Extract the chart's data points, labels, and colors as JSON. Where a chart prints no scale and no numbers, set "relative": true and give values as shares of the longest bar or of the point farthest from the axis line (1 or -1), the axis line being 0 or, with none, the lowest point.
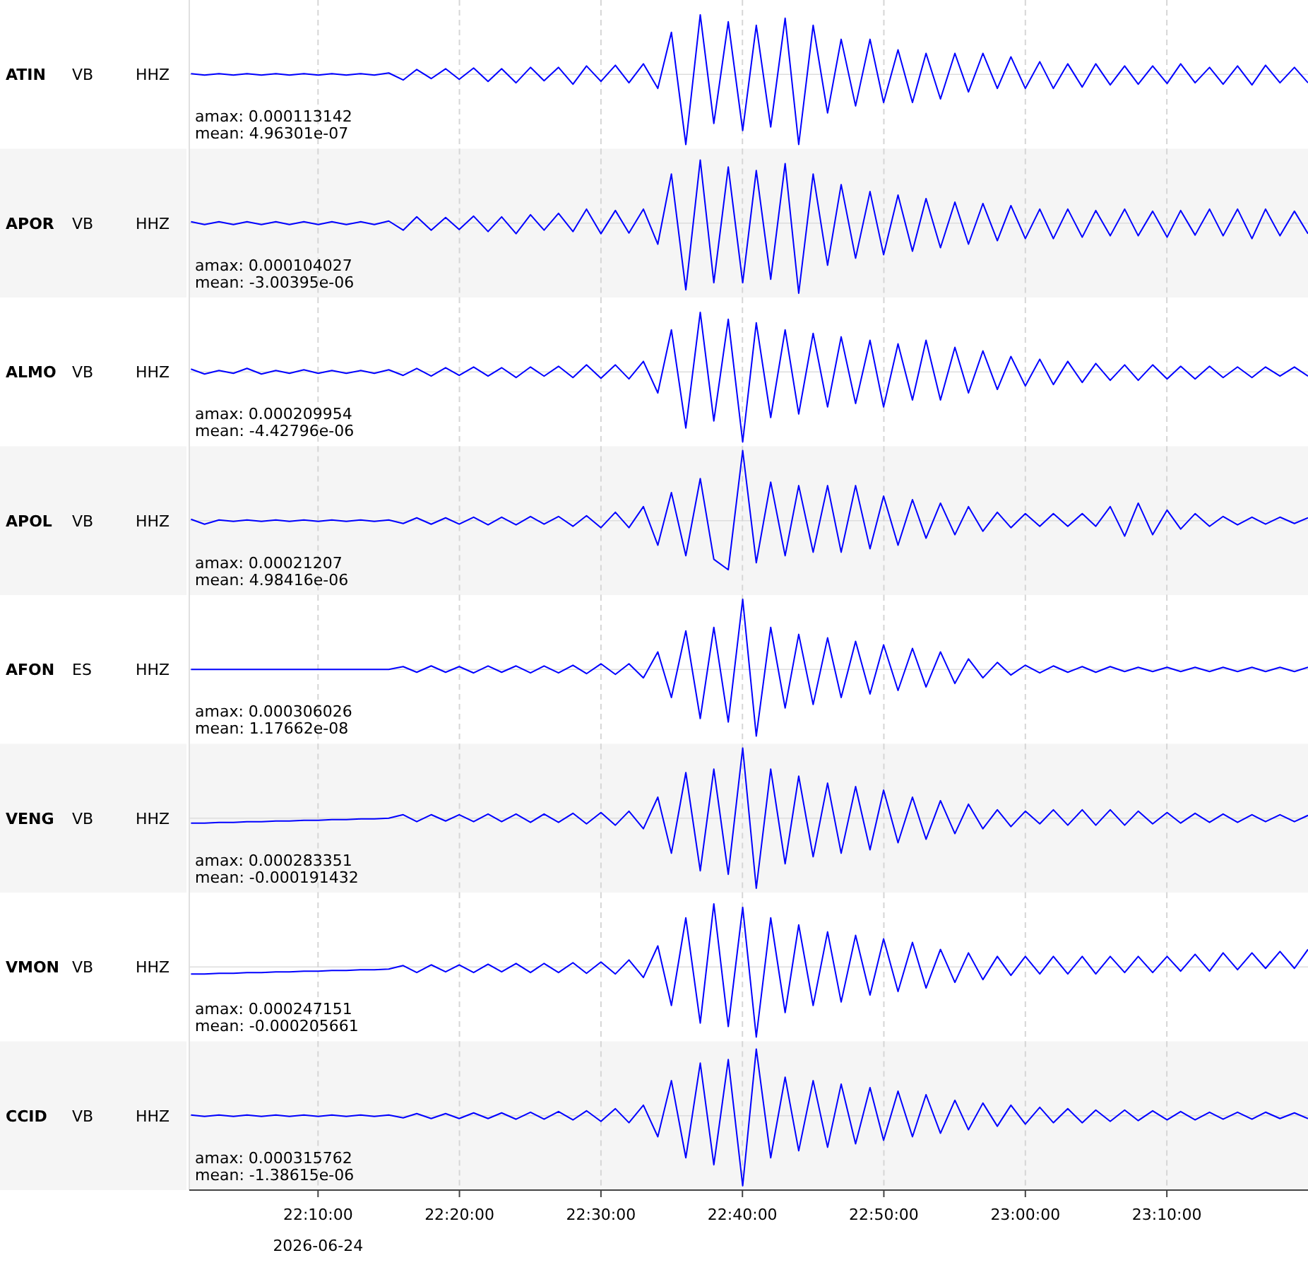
{
  "chart_data": [
    {
      "type": "line",
      "annotations": [
        "ATIN",
        "VB",
        "HHZ",
        "amax: 0.000113142",
        "mean: 4.96301e-07"
      ],
      "relative": true,
      "grid": "x",
      "tick_labels": false,
      "xlim": [
        22.015,
        23.333
      ],
      "xticks": [
        {
          "value": 22.1667,
          "label": null
        },
        {
          "value": 22.3333,
          "label": null
        },
        {
          "value": 22.5,
          "label": null
        },
        {
          "value": 22.6667,
          "label": null
        },
        {
          "value": 22.8333,
          "label": null
        },
        {
          "value": 23.0,
          "label": null
        },
        {
          "value": 23.1667,
          "label": null
        }
      ],
      "x": [
        22.017,
        22.033,
        22.05,
        22.067,
        22.083,
        22.1,
        22.117,
        22.133,
        22.15,
        22.167,
        22.183,
        22.2,
        22.217,
        22.233,
        22.25,
        22.267,
        22.283,
        22.3,
        22.317,
        22.333,
        22.35,
        22.367,
        22.383,
        22.4,
        22.417,
        22.433,
        22.45,
        22.467,
        22.483,
        22.5,
        22.517,
        22.533,
        22.55,
        22.567,
        22.583,
        22.6,
        22.617,
        22.633,
        22.65,
        22.667,
        22.683,
        22.7,
        22.717,
        22.733,
        22.75,
        22.767,
        22.783,
        22.8,
        22.817,
        22.833,
        22.85,
        22.867,
        22.883,
        22.9,
        22.917,
        22.933,
        22.95,
        22.967,
        22.983,
        23.0,
        23.017,
        23.033,
        23.05,
        23.067,
        23.083,
        23.1,
        23.117,
        23.133,
        23.15,
        23.167,
        23.183,
        23.2,
        23.217,
        23.233,
        23.25,
        23.267,
        23.283,
        23.3,
        23.317,
        23.333
      ],
      "series": [
        {
          "color": "#0000ff",
          "values": [
            0.01,
            -0.01,
            0.01,
            -0.01,
            0.01,
            -0.01,
            0.01,
            -0.01,
            0.01,
            -0.01,
            0.01,
            -0.01,
            0.01,
            -0.01,
            0.02,
            -0.08,
            0.07,
            -0.06,
            0.08,
            -0.07,
            0.09,
            -0.1,
            0.08,
            -0.12,
            0.1,
            -0.09,
            0.1,
            -0.14,
            0.12,
            -0.1,
            0.13,
            -0.12,
            0.15,
            -0.2,
            0.6,
            -1,
            0.85,
            -0.7,
            0.75,
            -0.8,
            0.7,
            -0.75,
            0.8,
            -1,
            0.7,
            -0.55,
            0.5,
            -0.45,
            0.5,
            -0.4,
            0.35,
            -0.4,
            0.3,
            -0.35,
            0.3,
            -0.25,
            0.3,
            -0.2,
            0.25,
            -0.2,
            0.18,
            -0.2,
            0.15,
            -0.18,
            0.15,
            -0.15,
            0.12,
            -0.14,
            0.12,
            -0.13,
            0.15,
            -0.12,
            0.1,
            -0.14,
            0.12,
            -0.15,
            0.13,
            -0.12,
            0.1,
            -0.12
          ]
        }
      ]
    },
    {
      "type": "line",
      "annotations": [
        "APOR",
        "VB",
        "HHZ",
        "amax: 0.000104027",
        "mean: -3.00395e-06"
      ],
      "relative": true,
      "grid": "x",
      "tick_labels": false,
      "xlim": [
        22.015,
        23.333
      ],
      "xticks": [
        {
          "value": 22.1667,
          "label": null
        },
        {
          "value": 22.3333,
          "label": null
        },
        {
          "value": 22.5,
          "label": null
        },
        {
          "value": 22.6667,
          "label": null
        },
        {
          "value": 22.8333,
          "label": null
        },
        {
          "value": 23.0,
          "label": null
        },
        {
          "value": 23.1667,
          "label": null
        }
      ],
      "x": [
        22.017,
        22.033,
        22.05,
        22.067,
        22.083,
        22.1,
        22.117,
        22.133,
        22.15,
        22.167,
        22.183,
        22.2,
        22.217,
        22.233,
        22.25,
        22.267,
        22.283,
        22.3,
        22.317,
        22.333,
        22.35,
        22.367,
        22.383,
        22.4,
        22.417,
        22.433,
        22.45,
        22.467,
        22.483,
        22.5,
        22.517,
        22.533,
        22.55,
        22.567,
        22.583,
        22.6,
        22.617,
        22.633,
        22.65,
        22.667,
        22.683,
        22.7,
        22.717,
        22.733,
        22.75,
        22.767,
        22.783,
        22.8,
        22.817,
        22.833,
        22.85,
        22.867,
        22.883,
        22.9,
        22.917,
        22.933,
        22.95,
        22.967,
        22.983,
        23.0,
        23.017,
        23.033,
        23.05,
        23.067,
        23.083,
        23.1,
        23.117,
        23.133,
        23.15,
        23.167,
        23.183,
        23.2,
        23.217,
        23.233,
        23.25,
        23.267,
        23.283,
        23.3,
        23.317,
        23.333
      ],
      "series": [
        {
          "color": "#0000ff",
          "values": [
            0.02,
            -0.02,
            0.02,
            -0.02,
            0.02,
            -0.02,
            0.02,
            -0.02,
            0.02,
            -0.02,
            0.02,
            -0.02,
            0.02,
            -0.02,
            0.03,
            -0.1,
            0.09,
            -0.1,
            0.08,
            -0.09,
            0.1,
            -0.12,
            0.09,
            -0.15,
            0.12,
            -0.1,
            0.14,
            -0.12,
            0.2,
            -0.15,
            0.18,
            -0.14,
            0.2,
            -0.3,
            0.7,
            -0.95,
            0.9,
            -0.85,
            0.8,
            -0.85,
            0.75,
            -0.8,
            0.85,
            -1,
            0.7,
            -0.6,
            0.55,
            -0.5,
            0.45,
            -0.45,
            0.4,
            -0.4,
            0.35,
            -0.35,
            0.3,
            -0.3,
            0.28,
            -0.25,
            0.25,
            -0.22,
            0.2,
            -0.22,
            0.2,
            -0.2,
            0.18,
            -0.18,
            0.2,
            -0.18,
            0.17,
            -0.2,
            0.18,
            -0.17,
            0.2,
            -0.18,
            0.2,
            -0.22,
            0.2,
            -0.18,
            0.17,
            -0.15
          ]
        }
      ]
    },
    {
      "type": "line",
      "annotations": [
        "ALMO",
        "VB",
        "HHZ",
        "amax: 0.000209954",
        "mean: -4.42796e-06"
      ],
      "relative": true,
      "grid": "x",
      "tick_labels": false,
      "xlim": [
        22.015,
        23.333
      ],
      "xticks": [
        {
          "value": 22.1667,
          "label": null
        },
        {
          "value": 22.3333,
          "label": null
        },
        {
          "value": 22.5,
          "label": null
        },
        {
          "value": 22.6667,
          "label": null
        },
        {
          "value": 22.8333,
          "label": null
        },
        {
          "value": 23.0,
          "label": null
        },
        {
          "value": 23.1667,
          "label": null
        }
      ],
      "x": [
        22.017,
        22.033,
        22.05,
        22.067,
        22.083,
        22.1,
        22.117,
        22.133,
        22.15,
        22.167,
        22.183,
        22.2,
        22.217,
        22.233,
        22.25,
        22.267,
        22.283,
        22.3,
        22.317,
        22.333,
        22.35,
        22.367,
        22.383,
        22.4,
        22.417,
        22.433,
        22.45,
        22.467,
        22.483,
        22.5,
        22.517,
        22.533,
        22.55,
        22.567,
        22.583,
        22.6,
        22.617,
        22.633,
        22.65,
        22.667,
        22.683,
        22.7,
        22.717,
        22.733,
        22.75,
        22.767,
        22.783,
        22.8,
        22.817,
        22.833,
        22.85,
        22.867,
        22.883,
        22.9,
        22.917,
        22.933,
        22.95,
        22.967,
        22.983,
        23.0,
        23.017,
        23.033,
        23.05,
        23.067,
        23.083,
        23.1,
        23.117,
        23.133,
        23.15,
        23.167,
        23.183,
        23.2,
        23.217,
        23.233,
        23.25,
        23.267,
        23.283,
        23.3,
        23.317,
        23.333
      ],
      "series": [
        {
          "color": "#0000ff",
          "values": [
            0.04,
            -0.03,
            0.02,
            -0.02,
            0.05,
            -0.03,
            0.02,
            -0.02,
            0.03,
            -0.02,
            0.02,
            -0.02,
            0.02,
            -0.02,
            0.03,
            -0.05,
            0.05,
            -0.06,
            0.06,
            -0.05,
            0.07,
            -0.06,
            0.06,
            -0.08,
            0.07,
            -0.06,
            0.08,
            -0.08,
            0.1,
            -0.09,
            0.1,
            -0.1,
            0.15,
            -0.3,
            0.6,
            -0.8,
            0.85,
            -0.7,
            0.75,
            -1,
            0.7,
            -0.65,
            0.6,
            -0.6,
            0.55,
            -0.5,
            0.5,
            -0.45,
            0.45,
            -0.5,
            0.4,
            -0.4,
            0.45,
            -0.4,
            0.35,
            -0.3,
            0.3,
            -0.25,
            0.22,
            -0.2,
            0.18,
            -0.18,
            0.15,
            -0.15,
            0.12,
            -0.12,
            0.1,
            -0.12,
            0.1,
            -0.1,
            0.08,
            -0.1,
            0.08,
            -0.08,
            0.07,
            -0.08,
            0.07,
            -0.06,
            0.07,
            -0.06
          ]
        }
      ]
    },
    {
      "type": "line",
      "annotations": [
        "APOL",
        "VB",
        "HHZ",
        "amax: 0.00021207",
        "mean: 4.98416e-06"
      ],
      "relative": true,
      "grid": "x",
      "tick_labels": false,
      "xlim": [
        22.015,
        23.333
      ],
      "xticks": [
        {
          "value": 22.1667,
          "label": null
        },
        {
          "value": 22.3333,
          "label": null
        },
        {
          "value": 22.5,
          "label": null
        },
        {
          "value": 22.6667,
          "label": null
        },
        {
          "value": 22.8333,
          "label": null
        },
        {
          "value": 23.0,
          "label": null
        },
        {
          "value": 23.1667,
          "label": null
        }
      ],
      "x": [
        22.017,
        22.033,
        22.05,
        22.067,
        22.083,
        22.1,
        22.117,
        22.133,
        22.15,
        22.167,
        22.183,
        22.2,
        22.217,
        22.233,
        22.25,
        22.267,
        22.283,
        22.3,
        22.317,
        22.333,
        22.35,
        22.367,
        22.383,
        22.4,
        22.417,
        22.433,
        22.45,
        22.467,
        22.483,
        22.5,
        22.517,
        22.533,
        22.55,
        22.567,
        22.583,
        22.6,
        22.617,
        22.633,
        22.65,
        22.667,
        22.683,
        22.7,
        22.717,
        22.733,
        22.75,
        22.767,
        22.783,
        22.8,
        22.817,
        22.833,
        22.85,
        22.867,
        22.883,
        22.9,
        22.917,
        22.933,
        22.95,
        22.967,
        22.983,
        23.0,
        23.017,
        23.033,
        23.05,
        23.067,
        23.083,
        23.1,
        23.117,
        23.133,
        23.15,
        23.167,
        23.183,
        23.2,
        23.217,
        23.233,
        23.25,
        23.267,
        23.283,
        23.3,
        23.317,
        23.333
      ],
      "series": [
        {
          "color": "#0000ff",
          "values": [
            0.02,
            -0.05,
            0.01,
            -0.01,
            0.01,
            -0.01,
            0.01,
            -0.01,
            0.01,
            -0.01,
            0.01,
            -0.01,
            0.01,
            -0.01,
            0.01,
            -0.04,
            0.04,
            -0.05,
            0.04,
            -0.05,
            0.05,
            -0.06,
            0.05,
            -0.06,
            0.06,
            -0.05,
            0.06,
            -0.08,
            0.07,
            -0.1,
            0.12,
            -0.1,
            0.2,
            -0.35,
            0.4,
            -0.5,
            0.6,
            -0.55,
            -0.7,
            1,
            -0.6,
            0.55,
            -0.5,
            0.5,
            -0.45,
            0.5,
            -0.45,
            0.5,
            -0.4,
            0.35,
            -0.35,
            0.3,
            -0.25,
            0.25,
            -0.2,
            0.2,
            -0.15,
            0.12,
            -0.1,
            0.1,
            -0.08,
            0.1,
            -0.08,
            0.1,
            -0.08,
            0.2,
            -0.22,
            0.25,
            -0.2,
            0.15,
            -0.12,
            0.1,
            -0.08,
            0.06,
            -0.06,
            0.05,
            -0.05,
            0.05,
            -0.04,
            0.04
          ]
        }
      ]
    },
    {
      "type": "line",
      "annotations": [
        "AFON",
        "ES",
        "HHZ",
        "amax: 0.000306026",
        "mean: 1.17662e-08"
      ],
      "relative": true,
      "grid": "x",
      "tick_labels": false,
      "xlim": [
        22.015,
        23.333
      ],
      "xticks": [
        {
          "value": 22.1667,
          "label": null
        },
        {
          "value": 22.3333,
          "label": null
        },
        {
          "value": 22.5,
          "label": null
        },
        {
          "value": 22.6667,
          "label": null
        },
        {
          "value": 22.8333,
          "label": null
        },
        {
          "value": 23.0,
          "label": null
        },
        {
          "value": 23.1667,
          "label": null
        }
      ],
      "x": [
        22.017,
        22.033,
        22.05,
        22.067,
        22.083,
        22.1,
        22.117,
        22.133,
        22.15,
        22.167,
        22.183,
        22.2,
        22.217,
        22.233,
        22.25,
        22.267,
        22.283,
        22.3,
        22.317,
        22.333,
        22.35,
        22.367,
        22.383,
        22.4,
        22.417,
        22.433,
        22.45,
        22.467,
        22.483,
        22.5,
        22.517,
        22.533,
        22.55,
        22.567,
        22.583,
        22.6,
        22.617,
        22.633,
        22.65,
        22.667,
        22.683,
        22.7,
        22.717,
        22.733,
        22.75,
        22.767,
        22.783,
        22.8,
        22.817,
        22.833,
        22.85,
        22.867,
        22.883,
        22.9,
        22.917,
        22.933,
        22.95,
        22.967,
        22.983,
        23.0,
        23.017,
        23.033,
        23.05,
        23.067,
        23.083,
        23.1,
        23.117,
        23.133,
        23.15,
        23.167,
        23.183,
        23.2,
        23.217,
        23.233,
        23.25,
        23.267,
        23.283,
        23.3,
        23.317,
        23.333
      ],
      "series": [
        {
          "color": "#0000ff",
          "values": [
            0,
            0,
            0,
            0,
            0,
            0,
            0,
            0,
            0,
            0,
            0,
            0,
            0,
            0,
            0,
            0.04,
            -0.04,
            0.05,
            -0.04,
            0.04,
            -0.05,
            0.05,
            -0.04,
            0.05,
            -0.05,
            0.05,
            -0.05,
            0.06,
            -0.06,
            0.08,
            -0.07,
            0.08,
            -0.12,
            0.25,
            -0.4,
            0.55,
            -0.7,
            0.6,
            -0.75,
            1,
            -0.95,
            0.6,
            -0.55,
            0.5,
            -0.5,
            0.45,
            -0.4,
            0.4,
            -0.35,
            0.35,
            -0.3,
            0.3,
            -0.25,
            0.25,
            -0.2,
            0.15,
            -0.12,
            0.1,
            -0.08,
            0.06,
            -0.05,
            0.05,
            -0.04,
            0.04,
            -0.04,
            0.04,
            -0.03,
            0.03,
            -0.03,
            0.03,
            -0.03,
            0.03,
            -0.03,
            0.03,
            -0.03,
            0.03,
            -0.03,
            0.03,
            -0.03,
            0.03
          ]
        }
      ]
    },
    {
      "type": "line",
      "annotations": [
        "VENG",
        "VB",
        "HHZ",
        "amax: 0.000283351",
        "mean: -0.000191432"
      ],
      "relative": true,
      "grid": "x",
      "tick_labels": false,
      "xlim": [
        22.015,
        23.333
      ],
      "xticks": [
        {
          "value": 22.1667,
          "label": null
        },
        {
          "value": 22.3333,
          "label": null
        },
        {
          "value": 22.5,
          "label": null
        },
        {
          "value": 22.6667,
          "label": null
        },
        {
          "value": 22.8333,
          "label": null
        },
        {
          "value": 23.0,
          "label": null
        },
        {
          "value": 23.1667,
          "label": null
        }
      ],
      "x": [
        22.017,
        22.033,
        22.05,
        22.067,
        22.083,
        22.1,
        22.117,
        22.133,
        22.15,
        22.167,
        22.183,
        22.2,
        22.217,
        22.233,
        22.25,
        22.267,
        22.283,
        22.3,
        22.317,
        22.333,
        22.35,
        22.367,
        22.383,
        22.4,
        22.417,
        22.433,
        22.45,
        22.467,
        22.483,
        22.5,
        22.517,
        22.533,
        22.55,
        22.567,
        22.583,
        22.6,
        22.617,
        22.633,
        22.65,
        22.667,
        22.683,
        22.7,
        22.717,
        22.733,
        22.75,
        22.767,
        22.783,
        22.8,
        22.817,
        22.833,
        22.85,
        22.867,
        22.883,
        22.9,
        22.917,
        22.933,
        22.95,
        22.967,
        22.983,
        23.0,
        23.017,
        23.033,
        23.05,
        23.067,
        23.083,
        23.1,
        23.117,
        23.133,
        23.15,
        23.167,
        23.183,
        23.2,
        23.217,
        23.233,
        23.25,
        23.267,
        23.283,
        23.3,
        23.317,
        23.333
      ],
      "series": [
        {
          "color": "#0000ff",
          "values": [
            -0.07,
            -0.07,
            -0.06,
            -0.06,
            -0.05,
            -0.05,
            -0.04,
            -0.04,
            -0.03,
            -0.03,
            -0.02,
            -0.02,
            -0.01,
            -0.01,
            0,
            0.05,
            -0.05,
            0.05,
            -0.04,
            0.05,
            -0.05,
            0.06,
            -0.05,
            0.06,
            -0.06,
            0.06,
            -0.06,
            0.07,
            -0.08,
            0.08,
            -0.1,
            0.1,
            -0.15,
            0.3,
            -0.5,
            0.65,
            -0.75,
            0.7,
            -0.8,
            1,
            -1,
            0.7,
            -0.65,
            0.6,
            -0.55,
            0.5,
            -0.5,
            0.45,
            -0.45,
            0.4,
            -0.35,
            0.3,
            -0.3,
            0.25,
            -0.22,
            0.2,
            -0.15,
            0.12,
            -0.12,
            0.1,
            -0.08,
            0.12,
            -0.1,
            0.12,
            -0.1,
            0.12,
            -0.1,
            0.1,
            -0.08,
            0.08,
            -0.07,
            0.07,
            -0.06,
            0.06,
            -0.06,
            0.05,
            -0.05,
            0.05,
            -0.05,
            0.04
          ]
        }
      ]
    },
    {
      "type": "line",
      "annotations": [
        "VMON",
        "VB",
        "HHZ",
        "amax: 0.000247151",
        "mean: -0.000205661"
      ],
      "relative": true,
      "grid": "x",
      "tick_labels": false,
      "xlim": [
        22.015,
        23.333
      ],
      "xticks": [
        {
          "value": 22.1667,
          "label": null
        },
        {
          "value": 22.3333,
          "label": null
        },
        {
          "value": 22.5,
          "label": null
        },
        {
          "value": 22.6667,
          "label": null
        },
        {
          "value": 22.8333,
          "label": null
        },
        {
          "value": 23.0,
          "label": null
        },
        {
          "value": 23.1667,
          "label": null
        }
      ],
      "x": [
        22.017,
        22.033,
        22.05,
        22.067,
        22.083,
        22.1,
        22.117,
        22.133,
        22.15,
        22.167,
        22.183,
        22.2,
        22.217,
        22.233,
        22.25,
        22.267,
        22.283,
        22.3,
        22.317,
        22.333,
        22.35,
        22.367,
        22.383,
        22.4,
        22.417,
        22.433,
        22.45,
        22.467,
        22.483,
        22.5,
        22.517,
        22.533,
        22.55,
        22.567,
        22.583,
        22.6,
        22.617,
        22.633,
        22.65,
        22.667,
        22.683,
        22.7,
        22.717,
        22.733,
        22.75,
        22.767,
        22.783,
        22.8,
        22.817,
        22.833,
        22.85,
        22.867,
        22.883,
        22.9,
        22.917,
        22.933,
        22.95,
        22.967,
        22.983,
        23.0,
        23.017,
        23.033,
        23.05,
        23.067,
        23.083,
        23.1,
        23.117,
        23.133,
        23.15,
        23.167,
        23.183,
        23.2,
        23.217,
        23.233,
        23.25,
        23.267,
        23.283,
        23.3,
        23.317,
        23.333
      ],
      "series": [
        {
          "color": "#0000ff",
          "values": [
            -0.1,
            -0.1,
            -0.09,
            -0.09,
            -0.08,
            -0.08,
            -0.07,
            -0.07,
            -0.06,
            -0.06,
            -0.05,
            -0.05,
            -0.04,
            -0.04,
            -0.03,
            0.02,
            -0.08,
            0.03,
            -0.07,
            0.03,
            -0.08,
            0.04,
            -0.07,
            0.05,
            -0.08,
            0.05,
            -0.08,
            0.06,
            -0.09,
            0.07,
            -0.1,
            0.1,
            -0.15,
            0.3,
            -0.55,
            0.7,
            -0.8,
            0.9,
            -0.85,
            0.85,
            -1,
            0.7,
            -0.65,
            0.6,
            -0.55,
            0.5,
            -0.5,
            0.45,
            -0.4,
            0.4,
            -0.35,
            0.35,
            -0.3,
            0.25,
            -0.22,
            0.2,
            -0.18,
            0.15,
            -0.12,
            0.15,
            -0.1,
            0.15,
            -0.1,
            0.15,
            -0.1,
            0.15,
            -0.08,
            0.15,
            -0.08,
            0.15,
            -0.06,
            0.18,
            -0.06,
            0.2,
            -0.04,
            0.2,
            -0.02,
            0.22,
            -0.02,
            0.25
          ]
        }
      ]
    },
    {
      "type": "line",
      "xlabel": "2026-06-24",
      "annotations": [
        "CCID",
        "VB",
        "HHZ",
        "amax: 0.000315762",
        "mean: -1.38615e-06"
      ],
      "relative": true,
      "grid": "x",
      "tick_labels": "x",
      "xlim": [
        22.015,
        23.333
      ],
      "xticks": [
        {
          "value": 22.1667,
          "label": "22:10:00"
        },
        {
          "value": 22.3333,
          "label": "22:20:00"
        },
        {
          "value": 22.5,
          "label": "22:30:00"
        },
        {
          "value": 22.6667,
          "label": "22:40:00"
        },
        {
          "value": 22.8333,
          "label": "22:50:00"
        },
        {
          "value": 23.0,
          "label": "23:00:00"
        },
        {
          "value": 23.1667,
          "label": "23:10:00"
        }
      ],
      "x": [
        22.017,
        22.033,
        22.05,
        22.067,
        22.083,
        22.1,
        22.117,
        22.133,
        22.15,
        22.167,
        22.183,
        22.2,
        22.217,
        22.233,
        22.25,
        22.267,
        22.283,
        22.3,
        22.317,
        22.333,
        22.35,
        22.367,
        22.383,
        22.4,
        22.417,
        22.433,
        22.45,
        22.467,
        22.483,
        22.5,
        22.517,
        22.533,
        22.55,
        22.567,
        22.583,
        22.6,
        22.617,
        22.633,
        22.65,
        22.667,
        22.683,
        22.7,
        22.717,
        22.733,
        22.75,
        22.767,
        22.783,
        22.8,
        22.817,
        22.833,
        22.85,
        22.867,
        22.883,
        22.9,
        22.917,
        22.933,
        22.95,
        22.967,
        22.983,
        23.0,
        23.017,
        23.033,
        23.05,
        23.067,
        23.083,
        23.1,
        23.117,
        23.133,
        23.15,
        23.167,
        23.183,
        23.2,
        23.217,
        23.233,
        23.25,
        23.267,
        23.283,
        23.3,
        23.317,
        23.333
      ],
      "series": [
        {
          "color": "#0000ff",
          "values": [
            0.01,
            -0.01,
            0.01,
            -0.01,
            0.01,
            -0.01,
            0.01,
            -0.01,
            0.01,
            -0.01,
            0.01,
            -0.01,
            0.01,
            -0.01,
            0.01,
            -0.03,
            0.03,
            -0.04,
            0.03,
            -0.04,
            0.04,
            -0.04,
            0.04,
            -0.05,
            0.05,
            -0.05,
            0.06,
            -0.06,
            0.07,
            -0.08,
            0.1,
            -0.1,
            0.15,
            -0.3,
            0.5,
            -0.6,
            0.75,
            -0.7,
            0.8,
            -1,
            0.95,
            -0.6,
            0.55,
            -0.5,
            0.5,
            -0.45,
            0.45,
            -0.4,
            0.4,
            -0.35,
            0.35,
            -0.3,
            0.3,
            -0.25,
            0.22,
            -0.2,
            0.18,
            -0.15,
            0.15,
            -0.12,
            0.12,
            -0.1,
            0.1,
            -0.1,
            0.08,
            -0.08,
            0.08,
            -0.07,
            0.07,
            -0.06,
            0.06,
            -0.06,
            0.05,
            -0.05,
            0.05,
            -0.05,
            0.05,
            -0.04,
            0.04,
            -0.04
          ]
        }
      ]
    }
  ]
}
